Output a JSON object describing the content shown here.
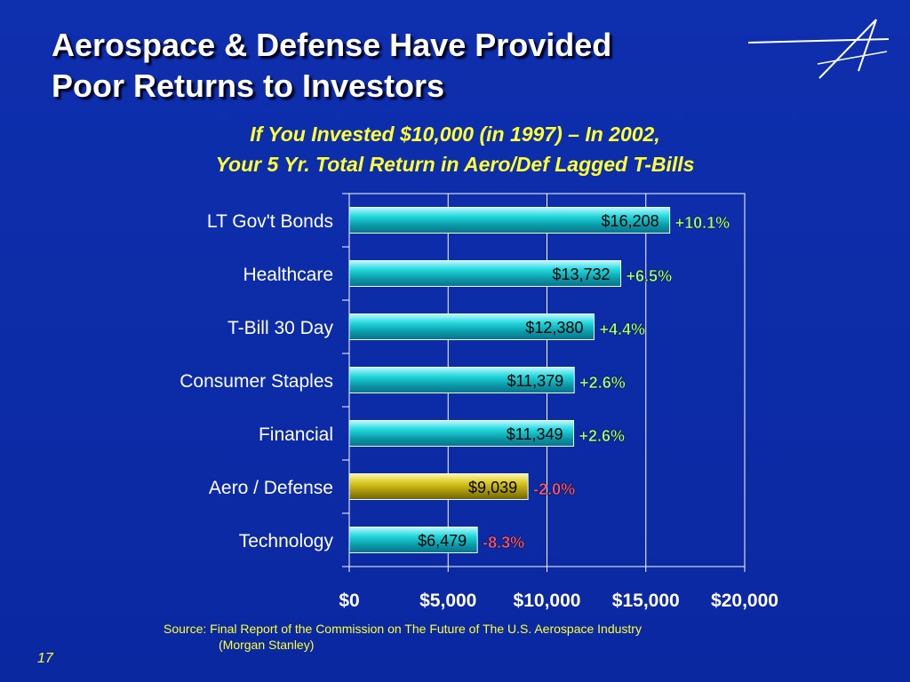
{
  "slide": {
    "title_line1": "Aerospace & Defense Have Provided",
    "title_line2": "Poor Returns to Investors",
    "subtitle_line1": "If You Invested $10,000 (in 1997) – In 2002,",
    "subtitle_line2": "Your 5 Yr. Total Return in Aero/Def Lagged T-Bills",
    "source_line1": "Source: Final Report of the Commission on The Future of The U.S. Aerospace Industry",
    "source_line2": "(Morgan Stanley)",
    "page_number": "17"
  },
  "colors": {
    "background": "#0b2aa6",
    "bar_default": "#22d8dc",
    "bar_highlight": "#d4c21a",
    "positive_label": "#a8ff80",
    "negative_label": "#ff5a7a",
    "text_yellow": "#ffff33"
  },
  "chart_data": {
    "type": "bar",
    "orientation": "horizontal",
    "categories": [
      "LT Gov't Bonds",
      "Healthcare",
      "T-Bill 30 Day",
      "Consumer Staples",
      "Financial",
      "Aero / Defense",
      "Technology"
    ],
    "values": [
      16208,
      13732,
      12380,
      11379,
      11349,
      9039,
      6479
    ],
    "value_labels": [
      "$16,208",
      "$13,732",
      "$12,380",
      "$11,379",
      "$11,349",
      "$9,039",
      "$6,479"
    ],
    "return_labels": [
      "+10.1%",
      "+6.5%",
      "+4.4%",
      "+2.6%",
      "+2.6%",
      "-2.0%",
      "-8.3%"
    ],
    "highlight_category": "Aero / Defense",
    "xlim": [
      0,
      20000
    ],
    "x_ticks": [
      0,
      5000,
      10000,
      15000,
      20000
    ],
    "x_tick_labels": [
      "$0",
      "$5,000",
      "$10,000",
      "$15,000",
      "$20,000"
    ],
    "grid": true
  }
}
